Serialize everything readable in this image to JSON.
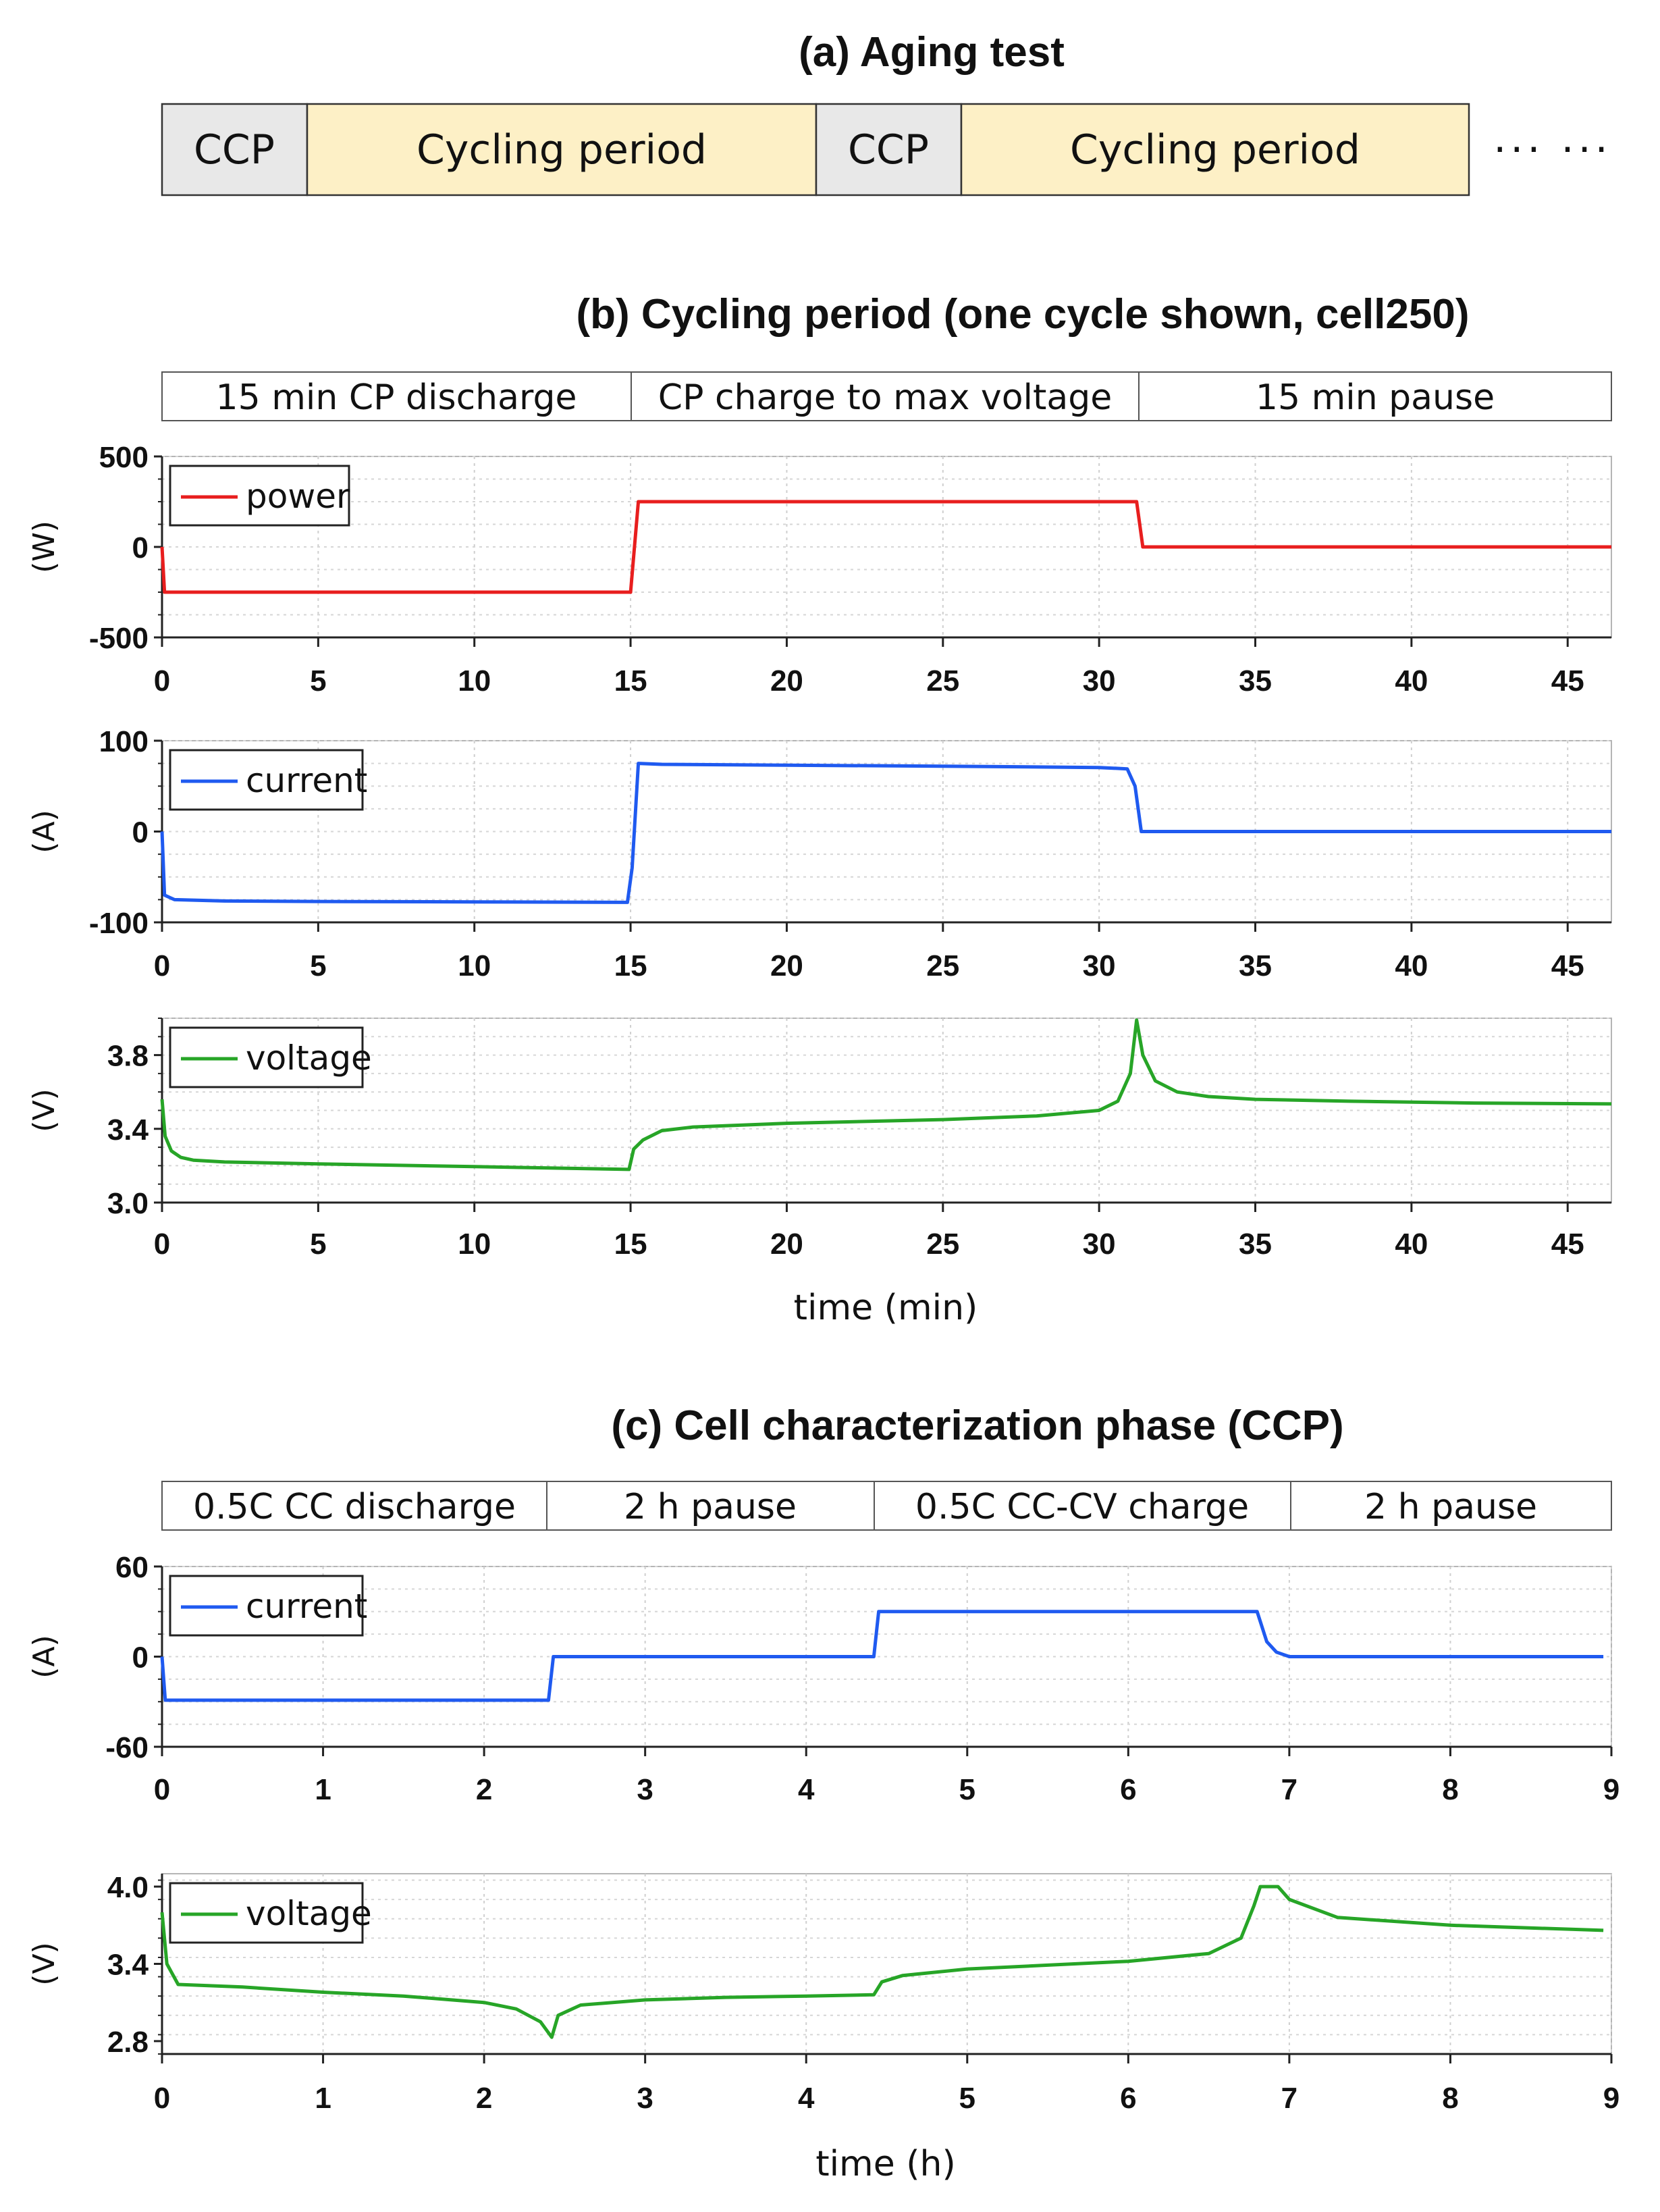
{
  "panel_a": {
    "title": "(a) Aging test",
    "segments": [
      {
        "label": "CCP",
        "fill": "#e8e8e8"
      },
      {
        "label": "Cycling period",
        "fill": "#fdf0c6"
      },
      {
        "label": "CCP",
        "fill": "#e8e8e8"
      },
      {
        "label": "Cycling period",
        "fill": "#fdf0c6"
      }
    ],
    "continuation": "··· ···"
  },
  "panel_b": {
    "title": "(b) Cycling period (one cycle shown, cell250)",
    "phases": [
      "15 min CP discharge",
      "CP charge to max voltage",
      "15 min pause"
    ],
    "xlabel": "time (min)"
  },
  "panel_c": {
    "title": "(c) Cell characterization phase (CCP)",
    "phases": [
      "0.5C CC discharge",
      "2 h pause",
      "0.5C CC-CV charge",
      "2 h pause"
    ],
    "xlabel": "time (h)"
  },
  "chart_data": [
    {
      "id": "b-power",
      "type": "line",
      "ylabel": "(W)",
      "legend": "power",
      "color": "#e81e1e",
      "xlim": [
        0,
        46.4
      ],
      "ylim": [
        -500,
        500
      ],
      "xticks": [
        0,
        5,
        10,
        15,
        20,
        25,
        30,
        35,
        40,
        45
      ],
      "yticks": [
        -500,
        0,
        500
      ],
      "x": [
        0,
        0.08,
        15,
        15.25,
        31.2,
        31.4,
        46.4
      ],
      "y": [
        0,
        -250,
        -250,
        250,
        250,
        0,
        0
      ]
    },
    {
      "id": "b-current",
      "type": "line",
      "ylabel": "(A)",
      "legend": "current",
      "color": "#1f5af0",
      "xlim": [
        0,
        46.4
      ],
      "ylim": [
        -100,
        100
      ],
      "xticks": [
        0,
        5,
        10,
        15,
        20,
        25,
        30,
        35,
        40,
        45
      ],
      "yticks": [
        -100,
        0,
        100
      ],
      "x": [
        0,
        0.08,
        0.4,
        2,
        5,
        10,
        14.9,
        15.05,
        15.25,
        16,
        20,
        25,
        30,
        30.9,
        31.15,
        31.35,
        46.4
      ],
      "y": [
        0,
        -70,
        -75,
        -76.5,
        -77,
        -77.5,
        -78,
        -40,
        75,
        74,
        73,
        72,
        70.5,
        69,
        50,
        0,
        0
      ]
    },
    {
      "id": "b-voltage",
      "type": "line",
      "ylabel": "(V)",
      "legend": "voltage",
      "color": "#27a527",
      "xlim": [
        0,
        46.4
      ],
      "ylim": [
        3.0,
        4.0
      ],
      "xticks": [
        0,
        5,
        10,
        15,
        20,
        25,
        30,
        35,
        40,
        45
      ],
      "yticks": [
        3.0,
        3.4,
        3.8
      ],
      "x": [
        0,
        0.1,
        0.3,
        0.6,
        1,
        2,
        5,
        10,
        14.95,
        15.1,
        15.4,
        16,
        17,
        20,
        25,
        28,
        30,
        30.6,
        31,
        31.2,
        31.4,
        31.8,
        32.5,
        33.5,
        35,
        38,
        42,
        46.4
      ],
      "y": [
        3.56,
        3.36,
        3.28,
        3.245,
        3.23,
        3.22,
        3.21,
        3.195,
        3.18,
        3.29,
        3.34,
        3.39,
        3.41,
        3.43,
        3.45,
        3.47,
        3.5,
        3.55,
        3.7,
        3.99,
        3.8,
        3.66,
        3.6,
        3.575,
        3.56,
        3.55,
        3.54,
        3.535
      ]
    },
    {
      "id": "c-current",
      "type": "line",
      "ylabel": "(A)",
      "legend": "current",
      "color": "#1f5af0",
      "xlim": [
        0,
        9
      ],
      "ylim": [
        -60,
        60
      ],
      "xticks": [
        0,
        1,
        2,
        3,
        4,
        5,
        6,
        7,
        8,
        9
      ],
      "yticks": [
        -60,
        0,
        60
      ],
      "x": [
        0,
        0.02,
        2.4,
        2.43,
        4.42,
        4.45,
        6.8,
        6.86,
        6.92,
        7.0,
        8.95
      ],
      "y": [
        0,
        -29,
        -29,
        0,
        0,
        30,
        30,
        10,
        3,
        0,
        0
      ]
    },
    {
      "id": "c-voltage",
      "type": "line",
      "ylabel": "(V)",
      "legend": "voltage",
      "color": "#27a527",
      "xlim": [
        0,
        9
      ],
      "ylim": [
        2.7,
        4.1
      ],
      "xticks": [
        0,
        1,
        2,
        3,
        4,
        5,
        6,
        7,
        8,
        9
      ],
      "yticks": [
        2.8,
        3.4,
        4.0
      ],
      "x": [
        0,
        0.03,
        0.1,
        0.5,
        1,
        1.5,
        2,
        2.2,
        2.35,
        2.42,
        2.46,
        2.6,
        3,
        3.5,
        4,
        4.42,
        4.47,
        4.6,
        5,
        5.5,
        6,
        6.5,
        6.7,
        6.78,
        6.82,
        6.93,
        7.0,
        7.3,
        8,
        8.95
      ],
      "y": [
        3.8,
        3.4,
        3.24,
        3.22,
        3.18,
        3.15,
        3.1,
        3.05,
        2.95,
        2.83,
        3.0,
        3.08,
        3.12,
        3.14,
        3.15,
        3.16,
        3.26,
        3.31,
        3.36,
        3.39,
        3.42,
        3.48,
        3.6,
        3.85,
        4.0,
        4.0,
        3.9,
        3.76,
        3.7,
        3.66
      ]
    }
  ]
}
